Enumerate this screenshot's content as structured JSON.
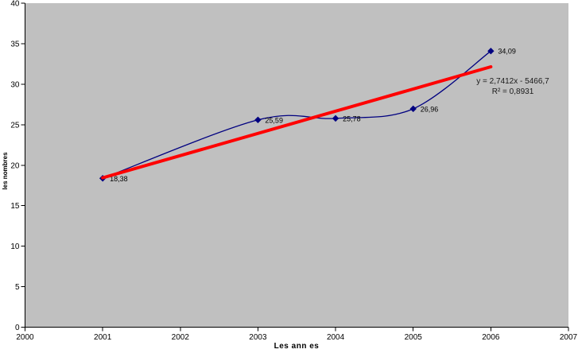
{
  "chart_data": {
    "type": "line",
    "title": "",
    "xlabel": "Les ann es",
    "ylabel": "les nombres",
    "x": [
      2001,
      2003,
      2004,
      2005,
      2006
    ],
    "values": [
      18.38,
      25.59,
      25.78,
      26.96,
      34.09
    ],
    "point_labels": [
      "18,38",
      "25,59",
      "25,78",
      "26,96",
      "34,09"
    ],
    "xlim": [
      2000,
      2007
    ],
    "ylim": [
      0,
      40
    ],
    "x_ticks": [
      "2000",
      "2001",
      "2002",
      "2003",
      "2004",
      "2005",
      "2006",
      "2007"
    ],
    "y_ticks": [
      "0",
      "5",
      "10",
      "15",
      "20",
      "25",
      "30",
      "35",
      "40"
    ],
    "grid": false,
    "legend": "none",
    "colors": {
      "plot_bg": "#C0C0C0",
      "series": "#000080",
      "trendline": "#FF0000",
      "axis": "#000000",
      "text": "#000000"
    },
    "trendline": {
      "slope": 2.7412,
      "intercept": -5466.7,
      "x_start": 2001,
      "x_end": 2006,
      "equation_label": "y = 2,7412x - 5466,7",
      "r_squared_label": "R² = 0,8931"
    }
  }
}
